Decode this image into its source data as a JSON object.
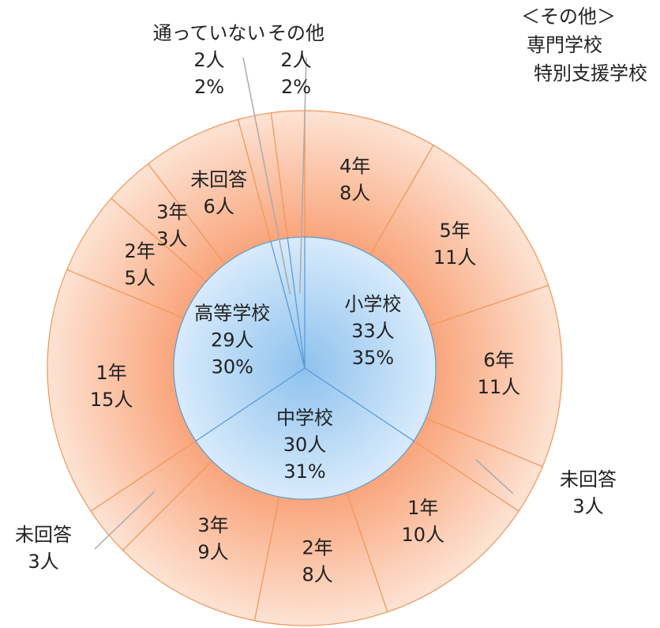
{
  "chart_data": {
    "type": "sunburst",
    "inner": {
      "categories": [
        "小学校",
        "中学校",
        "高等学校",
        "通っていない",
        "その他"
      ],
      "values": [
        33,
        30,
        29,
        2,
        2
      ],
      "value_labels": [
        "33人",
        "30人",
        "29人",
        "2人",
        "2人"
      ],
      "percents": [
        35,
        31,
        30,
        2,
        2
      ],
      "percent_labels": [
        "35%",
        "31%",
        "30%",
        "2%",
        "2%"
      ],
      "color": "#9ccbf0",
      "stroke": "#5b9bd5"
    },
    "outer": {
      "categories": [
        "4年",
        "5年",
        "6年",
        "未回答",
        "1年",
        "2年",
        "3年",
        "未回答",
        "1年",
        "2年",
        "3年",
        "未回答",
        null,
        null
      ],
      "values": [
        8,
        11,
        11,
        3,
        10,
        8,
        9,
        3,
        15,
        5,
        3,
        6,
        2,
        2
      ],
      "value_labels": [
        "8人",
        "11人",
        "11人",
        "3人",
        "10人",
        "8人",
        "9人",
        "3人",
        "15人",
        "5人",
        "3人",
        "6人",
        null,
        null
      ],
      "color": "#fbbf9e",
      "stroke": "#f0975a"
    },
    "note": [
      "＜その他＞",
      "専門学校",
      "特別支援学校"
    ]
  }
}
